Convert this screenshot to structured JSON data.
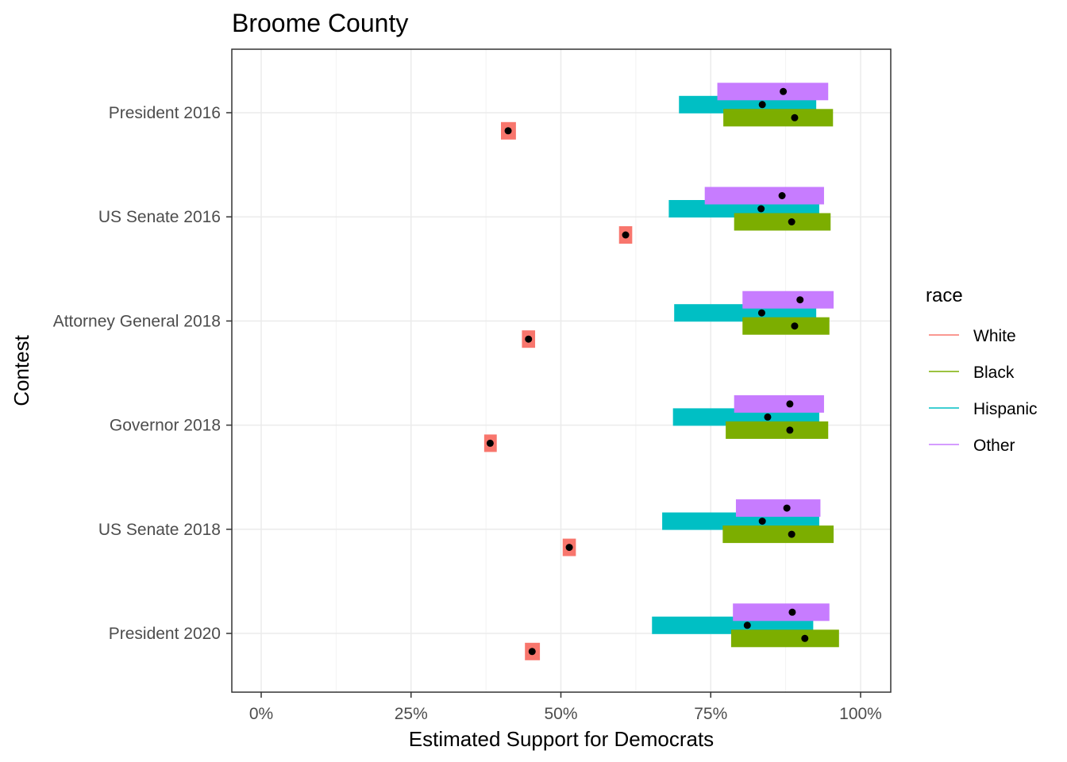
{
  "chart_data": {
    "type": "range-bar",
    "title": "Broome County",
    "xlabel": "Estimated Support for Democrats",
    "ylabel": "Contest",
    "xlim": [
      -0.1,
      1.05
    ],
    "xticks": [
      0,
      0.25,
      0.5,
      0.75,
      1.0
    ],
    "xtick_labels": [
      "0%",
      "25%",
      "50%",
      "75%",
      "100%"
    ],
    "grid": true,
    "legend": {
      "title": "race",
      "position": "right",
      "entries": [
        {
          "name": "White",
          "color": "#F8766D"
        },
        {
          "name": "Black",
          "color": "#7CAE00"
        },
        {
          "name": "Hispanic",
          "color": "#00BFC4"
        },
        {
          "name": "Other",
          "color": "#C77CFF"
        }
      ]
    },
    "categories": [
      "President 2016",
      "US Senate 2016",
      "Attorney General 2018",
      "Governor 2018",
      "US Senate 2018",
      "President 2020"
    ],
    "series": [
      {
        "name": "White",
        "color": "#F8766D",
        "points": [
          {
            "lo": 0.4,
            "hi": 0.425,
            "est": 0.412
          },
          {
            "lo": 0.597,
            "hi": 0.619,
            "est": 0.608
          },
          {
            "lo": 0.435,
            "hi": 0.457,
            "est": 0.446
          },
          {
            "lo": 0.372,
            "hi": 0.393,
            "est": 0.382
          },
          {
            "lo": 0.503,
            "hi": 0.525,
            "est": 0.514
          },
          {
            "lo": 0.44,
            "hi": 0.465,
            "est": 0.452
          }
        ]
      },
      {
        "name": "Black",
        "color": "#7CAE00",
        "points": [
          {
            "lo": 0.771,
            "hi": 0.954,
            "est": 0.89
          },
          {
            "lo": 0.789,
            "hi": 0.95,
            "est": 0.885
          },
          {
            "lo": 0.803,
            "hi": 0.948,
            "est": 0.89
          },
          {
            "lo": 0.775,
            "hi": 0.946,
            "est": 0.882
          },
          {
            "lo": 0.77,
            "hi": 0.955,
            "est": 0.885
          },
          {
            "lo": 0.784,
            "hi": 0.964,
            "est": 0.907
          }
        ]
      },
      {
        "name": "Hispanic",
        "color": "#00BFC4",
        "points": [
          {
            "lo": 0.697,
            "hi": 0.926,
            "est": 0.836
          },
          {
            "lo": 0.68,
            "hi": 0.931,
            "est": 0.834
          },
          {
            "lo": 0.689,
            "hi": 0.926,
            "est": 0.835
          },
          {
            "lo": 0.687,
            "hi": 0.931,
            "est": 0.845
          },
          {
            "lo": 0.669,
            "hi": 0.931,
            "est": 0.836
          },
          {
            "lo": 0.652,
            "hi": 0.921,
            "est": 0.811
          }
        ]
      },
      {
        "name": "Other",
        "color": "#C77CFF",
        "points": [
          {
            "lo": 0.761,
            "hi": 0.946,
            "est": 0.871
          },
          {
            "lo": 0.74,
            "hi": 0.939,
            "est": 0.869
          },
          {
            "lo": 0.803,
            "hi": 0.955,
            "est": 0.899
          },
          {
            "lo": 0.789,
            "hi": 0.939,
            "est": 0.882
          },
          {
            "lo": 0.792,
            "hi": 0.933,
            "est": 0.877
          },
          {
            "lo": 0.787,
            "hi": 0.948,
            "est": 0.886
          }
        ]
      }
    ]
  }
}
